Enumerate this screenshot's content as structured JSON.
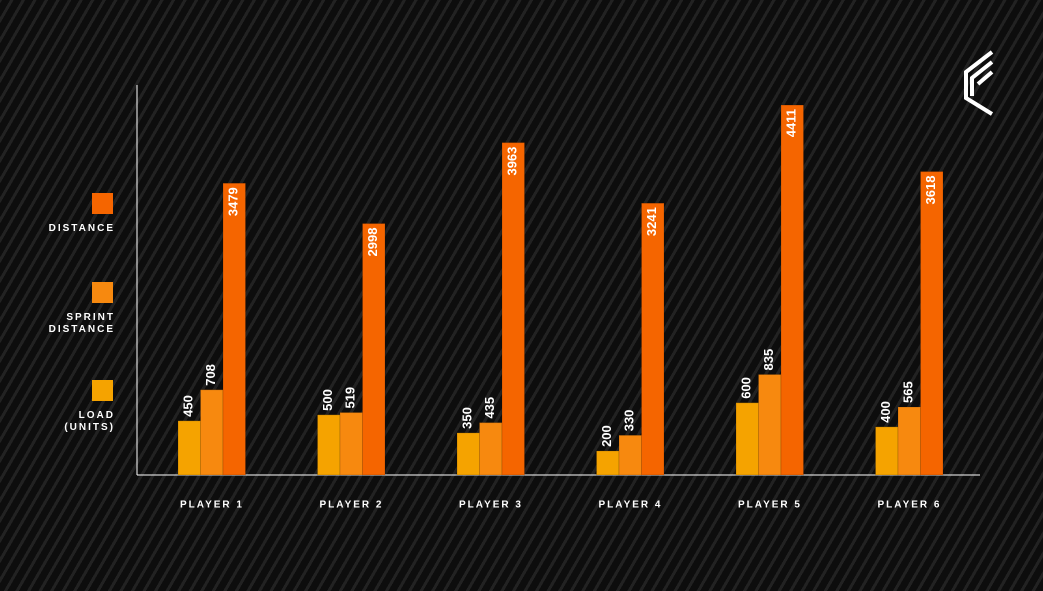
{
  "chart_data": {
    "type": "bar",
    "categories": [
      "PLAYER 1",
      "PLAYER 2",
      "PLAYER 3",
      "PLAYER 4",
      "PLAYER 5",
      "PLAYER 6"
    ],
    "series": [
      {
        "name": "LOAD (UNITS)",
        "color": "#f5a300",
        "values": [
          450,
          500,
          350,
          200,
          600,
          400
        ]
      },
      {
        "name": "SPRINT DISTANCE",
        "color": "#f7890f",
        "values": [
          708,
          519,
          435,
          330,
          835,
          565
        ]
      },
      {
        "name": "DISTANCE",
        "color": "#f56500",
        "axis": "y2",
        "values": [
          3479,
          2998,
          3963,
          3241,
          4411,
          3618
        ]
      }
    ],
    "ylim": [
      0,
      3240
    ],
    "y2lim": [
      0,
      4650
    ],
    "legend": "left"
  }
}
